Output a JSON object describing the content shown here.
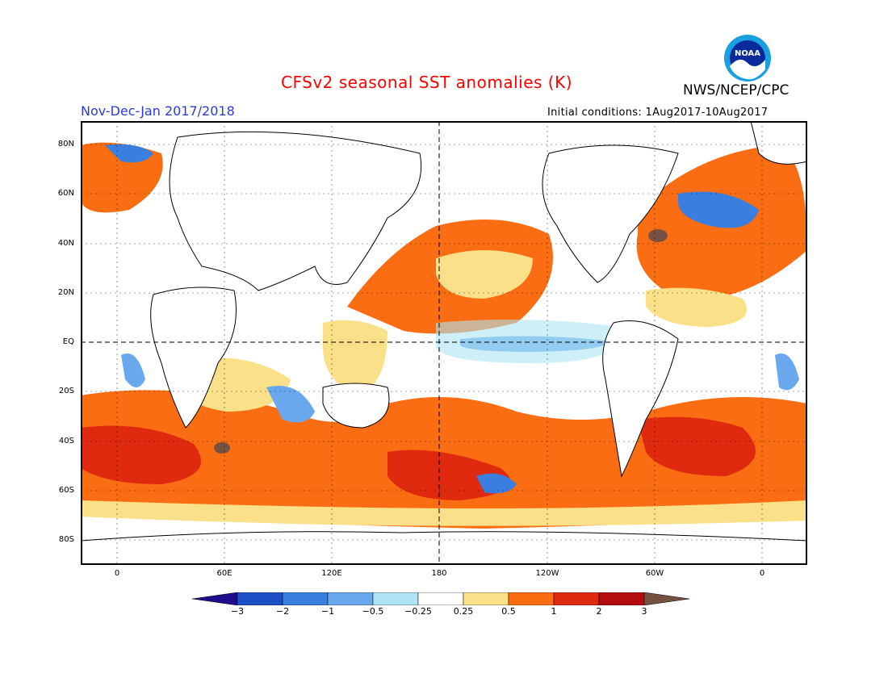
{
  "header": {
    "title": "CFSv2 seasonal SST anomalies (K)",
    "org": "NWS/NCEP/CPC",
    "season": "Nov-Dec-Jan 2017/2018",
    "initial_conditions": "Initial conditions: 1Aug2017-10Aug2017",
    "logo_text": "NOAA"
  },
  "map": {
    "lat_labels": [
      "80N",
      "60N",
      "40N",
      "20N",
      "EQ",
      "20S",
      "40S",
      "60S",
      "80S"
    ],
    "lon_labels": [
      "0",
      "60E",
      "120E",
      "180",
      "120W",
      "60W",
      "0"
    ]
  },
  "colorbar": {
    "labels": [
      "-3",
      "-2",
      "-1",
      "-0.5",
      "-0.25",
      "0.25",
      "0.5",
      "1",
      "2",
      "3"
    ],
    "colors": [
      "#1d0f8c",
      "#1f4fc4",
      "#3a7ee0",
      "#6aa8ee",
      "#aee4f4",
      "#ffffff",
      "#fbe08a",
      "#fb6d12",
      "#e02a10",
      "#b40d0d",
      "#765140"
    ]
  }
}
